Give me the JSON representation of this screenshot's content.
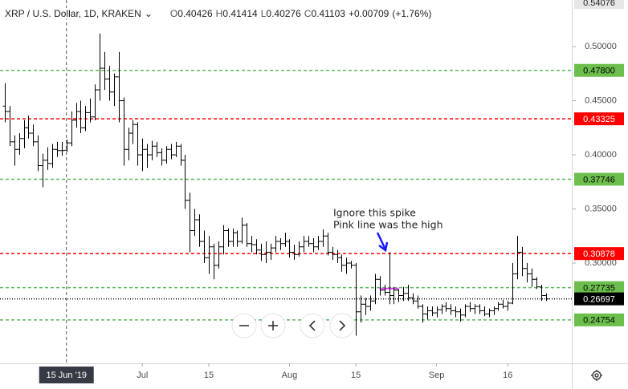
{
  "chart_data": {
    "type": "ohlc",
    "title": "XRP / U.S. Dollar, 1D, KRAKEN",
    "legend_labels": {
      "open": "O",
      "high": "H",
      "low": "L",
      "close": "C"
    },
    "change": "+0.00709",
    "change_pct": "(+1.76%)",
    "color": "#000000",
    "x": [
      "2019-06-02",
      "2019-06-03",
      "2019-06-04",
      "2019-06-05",
      "2019-06-06",
      "2019-06-07",
      "2019-06-08",
      "2019-06-09",
      "2019-06-10",
      "2019-06-11",
      "2019-06-12",
      "2019-06-13",
      "2019-06-14",
      "2019-06-15",
      "2019-06-16",
      "2019-06-17",
      "2019-06-18",
      "2019-06-19",
      "2019-06-20",
      "2019-06-21",
      "2019-06-22",
      "2019-06-23",
      "2019-06-24",
      "2019-06-25",
      "2019-06-26",
      "2019-06-27",
      "2019-06-28",
      "2019-06-29",
      "2019-06-30",
      "2019-07-01",
      "2019-07-02",
      "2019-07-03",
      "2019-07-04",
      "2019-07-05",
      "2019-07-06",
      "2019-07-07",
      "2019-07-08",
      "2019-07-09",
      "2019-07-10",
      "2019-07-11",
      "2019-07-12",
      "2019-07-13",
      "2019-07-14",
      "2019-07-15",
      "2019-07-16",
      "2019-07-17",
      "2019-07-18",
      "2019-07-19",
      "2019-07-20",
      "2019-07-21",
      "2019-07-22",
      "2019-07-23",
      "2019-07-24",
      "2019-07-25",
      "2019-07-26",
      "2019-07-27",
      "2019-07-28",
      "2019-07-29",
      "2019-07-30",
      "2019-07-31",
      "2019-08-01",
      "2019-08-02",
      "2019-08-03",
      "2019-08-04",
      "2019-08-05",
      "2019-08-06",
      "2019-08-07",
      "2019-08-08",
      "2019-08-09",
      "2019-08-10",
      "2019-08-11",
      "2019-08-12",
      "2019-08-13",
      "2019-08-14",
      "2019-08-15",
      "2019-08-16",
      "2019-08-17",
      "2019-08-18",
      "2019-08-19",
      "2019-08-20",
      "2019-08-21",
      "2019-08-22",
      "2019-08-23",
      "2019-08-24",
      "2019-08-25",
      "2019-08-26",
      "2019-08-27",
      "2019-08-28",
      "2019-08-29",
      "2019-08-30",
      "2019-08-31",
      "2019-09-01",
      "2019-09-02",
      "2019-09-03",
      "2019-09-04",
      "2019-09-05",
      "2019-09-06",
      "2019-09-07",
      "2019-09-08",
      "2019-09-09",
      "2019-09-10",
      "2019-09-11",
      "2019-09-12",
      "2019-09-13",
      "2019-09-14",
      "2019-09-15",
      "2019-09-16",
      "2019-09-17",
      "2019-09-18",
      "2019-09-19",
      "2019-09-20",
      "2019-09-21",
      "2019-09-22",
      "2019-09-23",
      "2019-09-24"
    ],
    "open": [
      0.445,
      0.44,
      0.412,
      0.405,
      0.415,
      0.425,
      0.42,
      0.412,
      0.39,
      0.395,
      0.392,
      0.405,
      0.4039,
      0.40426,
      0.411,
      0.432,
      0.44,
      0.425,
      0.439,
      0.435,
      0.46,
      0.48,
      0.47,
      0.458,
      0.472,
      0.45,
      0.405,
      0.42,
      0.428,
      0.4,
      0.405,
      0.4,
      0.408,
      0.402,
      0.395,
      0.405,
      0.4,
      0.408,
      0.395,
      0.358,
      0.33,
      0.34,
      0.32,
      0.305,
      0.315,
      0.298,
      0.315,
      0.33,
      0.32,
      0.328,
      0.32,
      0.335,
      0.318,
      0.317,
      0.312,
      0.308,
      0.31,
      0.314,
      0.32,
      0.318,
      0.32,
      0.31,
      0.308,
      0.315,
      0.32,
      0.318,
      0.315,
      0.32,
      0.325,
      0.31,
      0.308,
      0.305,
      0.298,
      0.3,
      0.298,
      0.255,
      0.262,
      0.26,
      0.265,
      0.285,
      0.275,
      0.273,
      0.27,
      0.275,
      0.27,
      0.272,
      0.268,
      0.265,
      0.26,
      0.253,
      0.256,
      0.254,
      0.257,
      0.26,
      0.258,
      0.256,
      0.255,
      0.252,
      0.26,
      0.258,
      0.26,
      0.256,
      0.253,
      0.256,
      0.258,
      0.262,
      0.26,
      0.263,
      0.29,
      0.31,
      0.295,
      0.29,
      0.285,
      0.278,
      0.27
    ],
    "high": [
      0.466,
      0.445,
      0.418,
      0.42,
      0.432,
      0.436,
      0.428,
      0.418,
      0.401,
      0.407,
      0.41,
      0.412,
      0.412,
      0.41414,
      0.44,
      0.448,
      0.45,
      0.445,
      0.452,
      0.465,
      0.512,
      0.495,
      0.482,
      0.475,
      0.495,
      0.453,
      0.425,
      0.432,
      0.43,
      0.415,
      0.41,
      0.413,
      0.412,
      0.406,
      0.408,
      0.41,
      0.412,
      0.41,
      0.4,
      0.365,
      0.35,
      0.345,
      0.33,
      0.325,
      0.318,
      0.32,
      0.335,
      0.332,
      0.332,
      0.33,
      0.342,
      0.337,
      0.325,
      0.322,
      0.318,
      0.32,
      0.318,
      0.325,
      0.323,
      0.328,
      0.322,
      0.317,
      0.32,
      0.325,
      0.325,
      0.323,
      0.325,
      0.331,
      0.328,
      0.315,
      0.312,
      0.308,
      0.305,
      0.302,
      0.3,
      0.27,
      0.268,
      0.27,
      0.29,
      0.288,
      0.28,
      0.31,
      0.278,
      0.276,
      0.278,
      0.28,
      0.272,
      0.27,
      0.262,
      0.26,
      0.26,
      0.26,
      0.262,
      0.264,
      0.262,
      0.26,
      0.258,
      0.262,
      0.264,
      0.262,
      0.262,
      0.26,
      0.258,
      0.26,
      0.264,
      0.266,
      0.265,
      0.3,
      0.325,
      0.315,
      0.3,
      0.295,
      0.287,
      0.28,
      0.272
    ],
    "low": [
      0.43,
      0.408,
      0.39,
      0.4,
      0.406,
      0.415,
      0.408,
      0.385,
      0.37,
      0.386,
      0.388,
      0.398,
      0.399,
      0.40276,
      0.408,
      0.425,
      0.42,
      0.422,
      0.43,
      0.432,
      0.45,
      0.46,
      0.45,
      0.445,
      0.43,
      0.39,
      0.395,
      0.41,
      0.39,
      0.385,
      0.388,
      0.395,
      0.398,
      0.39,
      0.392,
      0.396,
      0.398,
      0.39,
      0.35,
      0.31,
      0.325,
      0.315,
      0.3,
      0.29,
      0.285,
      0.295,
      0.308,
      0.315,
      0.315,
      0.315,
      0.318,
      0.315,
      0.31,
      0.308,
      0.302,
      0.3,
      0.303,
      0.31,
      0.312,
      0.315,
      0.305,
      0.303,
      0.306,
      0.31,
      0.315,
      0.31,
      0.312,
      0.315,
      0.307,
      0.303,
      0.3,
      0.292,
      0.29,
      0.295,
      0.233,
      0.245,
      0.252,
      0.256,
      0.262,
      0.27,
      0.27,
      0.262,
      0.262,
      0.264,
      0.265,
      0.265,
      0.262,
      0.258,
      0.245,
      0.248,
      0.251,
      0.25,
      0.253,
      0.255,
      0.252,
      0.25,
      0.246,
      0.25,
      0.255,
      0.253,
      0.253,
      0.251,
      0.25,
      0.252,
      0.256,
      0.258,
      0.256,
      0.262,
      0.285,
      0.288,
      0.282,
      0.278,
      0.276,
      0.265,
      0.265
    ],
    "close": [
      0.44,
      0.412,
      0.405,
      0.415,
      0.425,
      0.42,
      0.412,
      0.39,
      0.395,
      0.392,
      0.405,
      0.4039,
      0.40394,
      0.41103,
      0.432,
      0.44,
      0.425,
      0.439,
      0.435,
      0.46,
      0.48,
      0.47,
      0.458,
      0.472,
      0.45,
      0.405,
      0.42,
      0.428,
      0.4,
      0.405,
      0.4,
      0.408,
      0.402,
      0.395,
      0.405,
      0.4,
      0.408,
      0.395,
      0.358,
      0.33,
      0.34,
      0.32,
      0.305,
      0.315,
      0.298,
      0.315,
      0.33,
      0.32,
      0.328,
      0.32,
      0.335,
      0.318,
      0.317,
      0.312,
      0.308,
      0.31,
      0.314,
      0.32,
      0.318,
      0.32,
      0.31,
      0.308,
      0.315,
      0.32,
      0.318,
      0.315,
      0.32,
      0.325,
      0.31,
      0.308,
      0.305,
      0.298,
      0.3,
      0.298,
      0.255,
      0.262,
      0.26,
      0.265,
      0.285,
      0.275,
      0.273,
      0.27,
      0.275,
      0.27,
      0.272,
      0.268,
      0.265,
      0.26,
      0.253,
      0.256,
      0.254,
      0.257,
      0.26,
      0.258,
      0.256,
      0.255,
      0.252,
      0.26,
      0.258,
      0.26,
      0.256,
      0.253,
      0.256,
      0.258,
      0.262,
      0.26,
      0.263,
      0.29,
      0.31,
      0.295,
      0.29,
      0.285,
      0.278,
      0.27,
      0.26697
    ],
    "xlim": [
      "2019-06-01",
      "2019-09-30"
    ],
    "ylim": [
      0.2074,
      0.543
    ],
    "xticks": [
      {
        "value": "2019-07-01",
        "label": "Jul"
      },
      {
        "value": "2019-07-15",
        "label": "15"
      },
      {
        "value": "2019-08-01",
        "label": "Aug"
      },
      {
        "value": "2019-08-15",
        "label": "15"
      },
      {
        "value": "2019-09-01",
        "label": "Sep"
      },
      {
        "value": "2019-09-16",
        "label": "16"
      }
    ],
    "yticks": [
      {
        "value": 0.3,
        "label": "0.30000"
      },
      {
        "value": 0.35,
        "label": "0.35000"
      },
      {
        "value": 0.4,
        "label": "0.40000"
      },
      {
        "value": 0.45,
        "label": "0.45000"
      },
      {
        "value": 0.5,
        "label": "0.50000"
      }
    ],
    "crosshair": {
      "x": "2019-06-15",
      "label": "15 Jun '19"
    },
    "axis_marker": 0.54076,
    "hlines": [
      {
        "value": 0.478,
        "label": "0.47800",
        "color": "#5cb85c",
        "style": "dashed",
        "label_bg": "#6cbf4c",
        "label_color": "#000000"
      },
      {
        "value": 0.43325,
        "color": "#ff0000",
        "style": "dashed",
        "label_bg": "#ff0000",
        "label_color": "#ffffff"
      },
      {
        "value": 0.37746,
        "color": "#5cb85c",
        "style": "dashed",
        "label_bg": "#6cbf4c",
        "label_color": "#000000"
      },
      {
        "value": 0.30878,
        "color": "#ff0000",
        "style": "dashed",
        "label_bg": "#ff0000",
        "label_color": "#ffffff"
      },
      {
        "value": 0.27735,
        "color": "#5cb85c",
        "style": "dashed",
        "label_bg": "#6cbf4c",
        "label_color": "#000000"
      },
      {
        "value": 0.26697,
        "color": "#000000",
        "style": "dotted",
        "label_bg": "#000000",
        "label_color": "#ffffff"
      },
      {
        "value": 0.24754,
        "color": "#5cb85c",
        "style": "dashed",
        "label_bg": "#6cbf4c",
        "label_color": "#000000"
      }
    ],
    "annotation": {
      "lines": [
        "Ignore this spike",
        "Pink line was the high"
      ],
      "pink_line": {
        "value": 0.2765,
        "x": [
          "2019-08-20",
          "2019-08-24"
        ],
        "color": "#e040fb"
      }
    }
  }
}
